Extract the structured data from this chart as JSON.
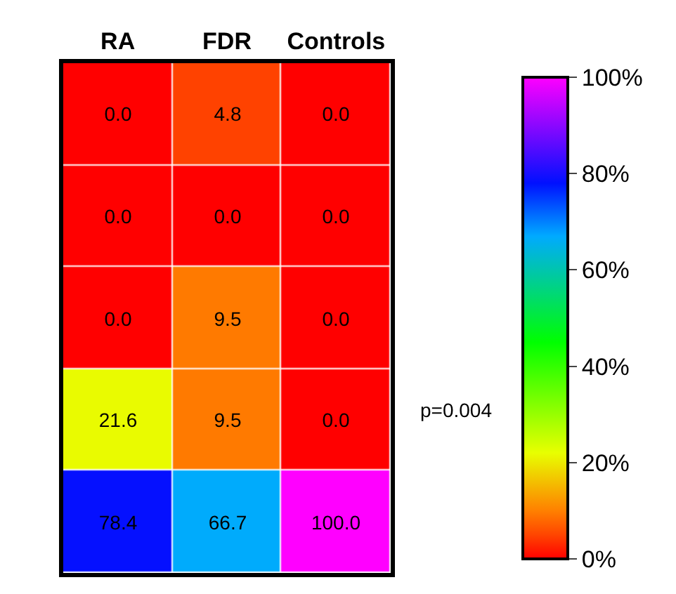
{
  "chart_data": {
    "type": "heatmap",
    "categories": [
      "RA",
      "FDR",
      "Controls"
    ],
    "y_categories": [
      null,
      null,
      null,
      null,
      null
    ],
    "cells": [
      [
        0.0,
        4.8,
        0.0
      ],
      [
        0.0,
        0.0,
        0.0
      ],
      [
        0.0,
        9.5,
        0.0
      ],
      [
        21.6,
        9.5,
        0.0
      ],
      [
        78.4,
        66.7,
        100.0
      ]
    ],
    "cell_labels": [
      [
        "0.0",
        "4.8",
        "0.0"
      ],
      [
        "0.0",
        "0.0",
        "0.0"
      ],
      [
        "0.0",
        "9.5",
        "0.0"
      ],
      [
        "21.6",
        "9.5",
        "0.0"
      ],
      [
        "78.4",
        "66.7",
        "100.0"
      ]
    ],
    "clim": [
      0,
      100
    ],
    "cticks": [
      {
        "value": 0,
        "label": "0%"
      },
      {
        "value": 20,
        "label": "20%"
      },
      {
        "value": 40,
        "label": "40%"
      },
      {
        "value": 60,
        "label": "60%"
      },
      {
        "value": 80,
        "label": "80%"
      },
      {
        "value": 100,
        "label": "100%"
      }
    ],
    "annotations": [
      "p=0.004"
    ]
  }
}
